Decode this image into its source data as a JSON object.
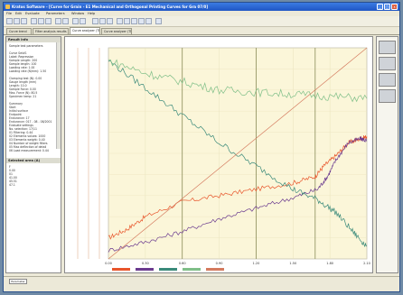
{
  "window": {
    "title": "Kratos Software - [Curve for Grain - E1 Mechanical and Orthogonal Printing Curves for Gra 07/0]",
    "buttons": [
      "_",
      "□",
      "x"
    ]
  },
  "menubar": [
    "File",
    "Edit",
    "Evaluate",
    "Parameters",
    "Window",
    "Help"
  ],
  "tabs": [
    {
      "label": "Curve trend",
      "active": false
    },
    {
      "label": "Filter analysis results",
      "active": false
    },
    {
      "label": "Curve analyzer (TN)",
      "active": true
    },
    {
      "label": "Curve analyzer (TN)",
      "active": false
    }
  ],
  "left_panel": {
    "title": "Result info",
    "lines": [
      "Sample test parameters",
      "",
      "Curve Set#1",
      "Label: Regression",
      "Sample Length: 200",
      "Sample length: 100",
      "Loading rate: 1.00",
      "Loading rate (N/mm): 1.50",
      "",
      "Clamping test (N): 0.00",
      "Gauge length (mm)",
      "Length: 10.0",
      "Sample Force: 0.00",
      "Max. Force (N): 80.5",
      "Specimen temp: 21",
      "",
      "Summary",
      "Start",
      "Initial surface",
      "Endpoint",
      "Endurance: 17",
      "Endurance: 017 - 08 - 08/2001",
      "Evaluate settings",
      "No. selection: 17/11",
      "01 Filtering: 0.44",
      "02 Elements values: 1000",
      "03 Elements weight: 0.40",
      "04 Number of weight filters",
      "05 Max deflection of detail",
      "06 Load measurement: 0.44"
    ],
    "lower_title": "Selected area (A)",
    "lower_lines": [
      "F",
      "0.00",
      "01",
      "41.00",
      "45.51",
      "47.1"
    ],
    "scroll_label": "Parameter"
  },
  "status_bar": {
    "button": "Parameter"
  },
  "chart_data": {
    "type": "line",
    "x_ticks": [
      "0.00",
      "0.30",
      "0.60",
      "0.90",
      "1.20",
      "1.50",
      "1.80",
      "2.10"
    ],
    "xlim": [
      0,
      2.1
    ],
    "ylim": [
      0,
      100
    ],
    "grid": true,
    "legend_position": "bottom",
    "series": [
      {
        "key": "orange",
        "color": "#e8552b",
        "x": [
          0,
          0.15,
          0.3,
          0.6,
          0.9,
          1.2,
          1.5,
          1.68,
          1.75,
          1.85,
          1.95,
          2.05,
          2.1
        ],
        "y": [
          10,
          14,
          20,
          27,
          30,
          33,
          36,
          39,
          44,
          49,
          55,
          57,
          58
        ]
      },
      {
        "key": "purple",
        "color": "#6b3b8f",
        "x": [
          0,
          0.3,
          0.6,
          0.9,
          1.2,
          1.5,
          1.7,
          1.78,
          1.85,
          1.95,
          2.05,
          2.1
        ],
        "y": [
          4,
          8,
          13,
          19,
          24,
          29,
          33,
          39,
          47,
          55,
          57,
          56
        ]
      },
      {
        "key": "teal_descending",
        "color": "#3a8a7a",
        "x": [
          0,
          0.3,
          0.6,
          0.9,
          1.2,
          1.5,
          1.7,
          1.85,
          2.0,
          2.1
        ],
        "y": [
          94,
          81,
          68,
          55,
          44,
          33,
          28,
          22,
          12,
          6
        ]
      },
      {
        "key": "green_flat",
        "color": "#7fbf88",
        "x": [
          0,
          0.3,
          0.6,
          0.9,
          1.2,
          1.5,
          1.8,
          2.1
        ],
        "y": [
          94,
          88,
          84,
          80,
          79,
          78,
          77,
          76
        ]
      },
      {
        "key": "diagonal",
        "color": "#d47a5e",
        "x": [
          0,
          2.1
        ],
        "y": [
          0,
          100
        ]
      }
    ],
    "vertical_markers_x": [
      0.6,
      1.2,
      1.68
    ]
  }
}
